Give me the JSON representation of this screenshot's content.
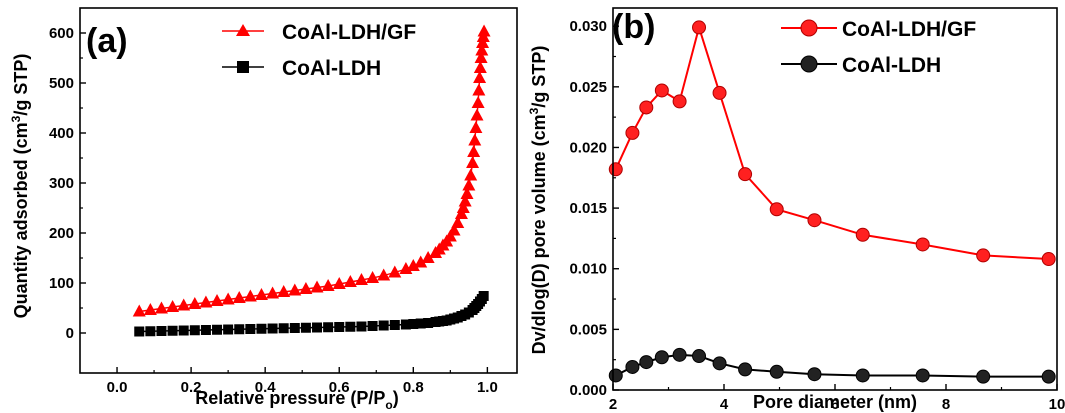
{
  "chart_data": [
    {
      "panel_label": "(a)",
      "type": "scatter",
      "xlabel": "Relative pressure (P/P",
      "xlabel_sub": "o",
      "xlabel_end": ")",
      "ylabel": "Quantity adsorbed (cm",
      "ylabel_sup": "3",
      "ylabel_end": "/g STP)",
      "xlim": [
        -0.1,
        1.08
      ],
      "ylim": [
        -80,
        650
      ],
      "xticks": [
        "0.0",
        "0.2",
        "0.4",
        "0.6",
        "0.8",
        "1.0"
      ],
      "yticks": [
        "0",
        "100",
        "200",
        "300",
        "400",
        "500",
        "600"
      ],
      "grid": false,
      "legend_placement": "top-right",
      "series": [
        {
          "name": "CoAl-LDH/GF",
          "color": "#ff0000",
          "marker": "triangle",
          "x": [
            0.06,
            0.09,
            0.12,
            0.15,
            0.18,
            0.21,
            0.24,
            0.27,
            0.3,
            0.33,
            0.36,
            0.39,
            0.42,
            0.45,
            0.48,
            0.51,
            0.54,
            0.57,
            0.6,
            0.63,
            0.66,
            0.69,
            0.72,
            0.75,
            0.78,
            0.8,
            0.82,
            0.84,
            0.86,
            0.87,
            0.88,
            0.89,
            0.9,
            0.91,
            0.92,
            0.93,
            0.935,
            0.94,
            0.945,
            0.95,
            0.955,
            0.96,
            0.963,
            0.966,
            0.969,
            0.972,
            0.975,
            0.977,
            0.979,
            0.981,
            0.983,
            0.985,
            0.987,
            0.989,
            0.991
          ],
          "y": [
            43,
            46,
            49,
            52,
            55,
            58,
            61,
            64,
            67,
            70,
            73,
            76,
            79,
            82,
            85,
            88,
            91,
            94,
            98,
            102,
            106,
            110,
            115,
            121,
            128,
            134,
            141,
            150,
            160,
            167,
            175,
            183,
            193,
            205,
            220,
            238,
            250,
            263,
            278,
            295,
            315,
            340,
            362,
            385,
            410,
            435,
            460,
            485,
            510,
            530,
            550,
            565,
            580,
            592,
            603
          ]
        },
        {
          "name": "CoAl-LDH",
          "color": "#000000",
          "marker": "square",
          "x": [
            0.06,
            0.09,
            0.12,
            0.15,
            0.18,
            0.21,
            0.24,
            0.27,
            0.3,
            0.33,
            0.36,
            0.39,
            0.42,
            0.45,
            0.48,
            0.51,
            0.54,
            0.57,
            0.6,
            0.63,
            0.66,
            0.69,
            0.72,
            0.75,
            0.78,
            0.8,
            0.82,
            0.84,
            0.86,
            0.87,
            0.88,
            0.89,
            0.9,
            0.91,
            0.92,
            0.93,
            0.94,
            0.95,
            0.96,
            0.965,
            0.97,
            0.975,
            0.98,
            0.985,
            0.99
          ],
          "y": [
            3,
            3.5,
            4,
            4.5,
            5,
            5.5,
            6,
            6.5,
            7,
            7.5,
            8,
            8.5,
            9,
            9.5,
            10,
            10.5,
            11,
            11.5,
            12,
            12.5,
            13,
            14,
            15,
            16,
            17,
            18,
            19,
            20,
            22,
            23,
            24,
            25,
            27,
            29,
            31,
            34,
            37,
            41,
            46,
            50,
            54,
            58,
            63,
            68,
            74
          ]
        }
      ]
    },
    {
      "panel_label": "(b)",
      "type": "line",
      "xlabel": "Pore diameter (nm)",
      "ylabel": "Dv/dlog(D) pore volume (cm",
      "ylabel_sup": "3",
      "ylabel_end": "/g STP)",
      "xlim": [
        2,
        10
      ],
      "ylim": [
        0,
        0.0315
      ],
      "xticks": [
        "2",
        "4",
        "6",
        "8",
        "10"
      ],
      "yticks": [
        "0.000",
        "0.005",
        "0.010",
        "0.015",
        "0.020",
        "0.025",
        "0.030"
      ],
      "grid": false,
      "legend_placement": "top-right",
      "series": [
        {
          "name": "CoAl-LDH/GF",
          "color": "#ff0000",
          "marker": "circle",
          "x": [
            2.05,
            2.35,
            2.6,
            2.88,
            3.2,
            3.55,
            3.92,
            4.38,
            4.95,
            5.63,
            6.5,
            7.58,
            8.67,
            9.85
          ],
          "y": [
            0.0182,
            0.0212,
            0.0233,
            0.0247,
            0.0238,
            0.0299,
            0.0245,
            0.0178,
            0.0149,
            0.014,
            0.0128,
            0.012,
            0.0111,
            0.0108
          ]
        },
        {
          "name": "CoAl-LDH",
          "color": "#000000",
          "marker": "circle",
          "x": [
            2.05,
            2.35,
            2.6,
            2.88,
            3.2,
            3.55,
            3.92,
            4.38,
            4.95,
            5.63,
            6.5,
            7.58,
            8.67,
            9.85
          ],
          "y": [
            0.0012,
            0.0019,
            0.0023,
            0.0027,
            0.0029,
            0.0028,
            0.0022,
            0.0017,
            0.0015,
            0.0013,
            0.0012,
            0.0012,
            0.0011,
            0.0011
          ]
        }
      ]
    }
  ]
}
